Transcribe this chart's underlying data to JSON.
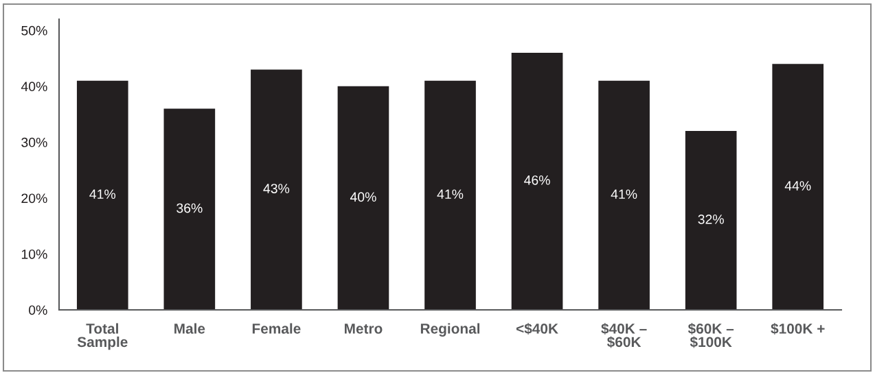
{
  "chart_data": {
    "type": "bar",
    "categories": [
      "Total\nSample",
      "Male",
      "Female",
      "Metro",
      "Regional",
      "<$40K",
      "$40K –\n$60K",
      "$60K –\n$100K",
      "$100K +"
    ],
    "values": [
      41,
      36,
      43,
      40,
      41,
      46,
      41,
      32,
      44
    ],
    "value_labels": [
      "41%",
      "36%",
      "43%",
      "40%",
      "41%",
      "46%",
      "41%",
      "32%",
      "44%"
    ],
    "color": "#231f20",
    "ylim": [
      0,
      52
    ],
    "yticks": [
      {
        "value": 0,
        "label": "0%"
      },
      {
        "value": 10,
        "label": "10%"
      },
      {
        "value": 20,
        "label": "20%"
      },
      {
        "value": 30,
        "label": "30%"
      },
      {
        "value": 40,
        "label": "40%"
      },
      {
        "value": 50,
        "label": "50%"
      }
    ]
  }
}
